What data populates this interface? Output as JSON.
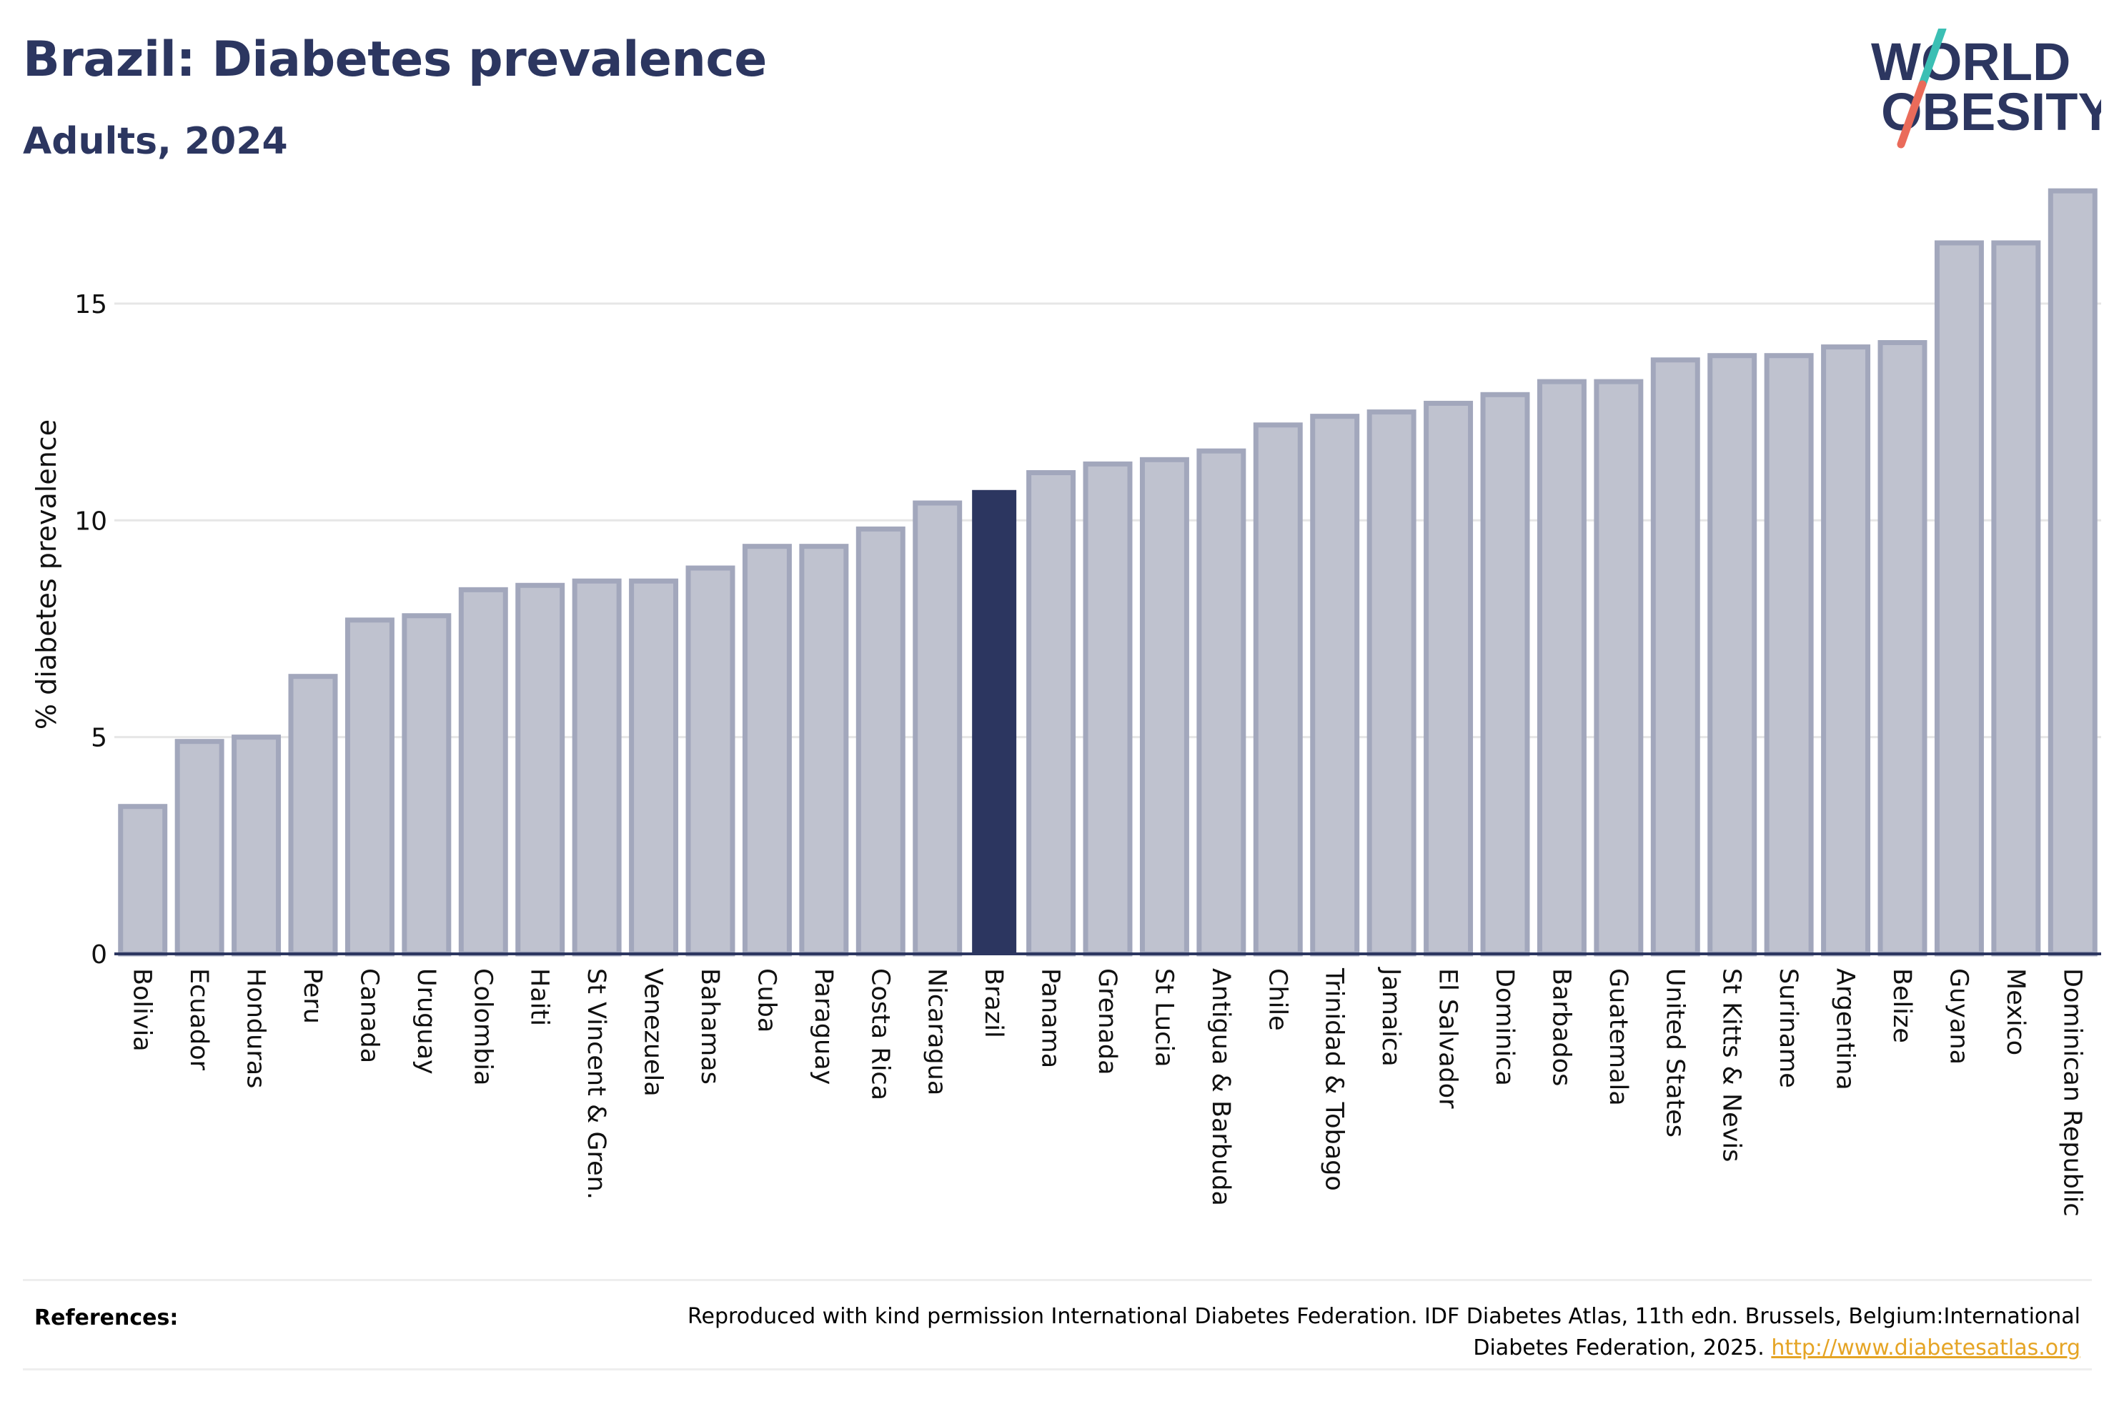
{
  "header": {
    "title": "Brazil: Diabetes prevalence",
    "subtitle": "Adults, 2024"
  },
  "logo": {
    "line1": "WORLD",
    "line2": "OBESITY",
    "colors": {
      "text": "#2c3660",
      "slash_top": "#3bbfb4",
      "slash_bottom": "#ea6b5a"
    }
  },
  "colors": {
    "bar_default_fill": "#bfc2cf",
    "bar_default_stroke": "#a2a7bc",
    "bar_highlight": "#2c3660",
    "gridline": "#e6e6e6",
    "axis": "#2c3660"
  },
  "chart_data": {
    "type": "bar",
    "ylabel": "% diabetes prevalence",
    "ylim": [
      0,
      17.8
    ],
    "yticks": [
      0,
      5,
      10,
      15
    ],
    "grid": true,
    "highlight": "Brazil",
    "categories": [
      "Bolivia",
      "Ecuador",
      "Honduras",
      "Peru",
      "Canada",
      "Uruguay",
      "Colombia",
      "Haiti",
      "St Vincent & Gren.",
      "Venezuela",
      "Bahamas",
      "Cuba",
      "Paraguay",
      "Costa Rica",
      "Nicaragua",
      "Brazil",
      "Panama",
      "Grenada",
      "St Lucia",
      "Antigua & Barbuda",
      "Chile",
      "Trinidad & Tobago",
      "Jamaica",
      "El Salvador",
      "Dominica",
      "Barbados",
      "Guatemala",
      "United States",
      "St Kitts & Nevis",
      "Suriname",
      "Argentina",
      "Belize",
      "Guyana",
      "Mexico",
      "Dominican Republic"
    ],
    "values": [
      3.4,
      4.9,
      5.0,
      6.4,
      7.7,
      7.8,
      8.4,
      8.5,
      8.6,
      8.6,
      8.9,
      9.4,
      9.4,
      9.8,
      10.4,
      10.7,
      11.1,
      11.3,
      11.4,
      11.6,
      12.2,
      12.4,
      12.5,
      12.7,
      12.9,
      13.2,
      13.2,
      13.7,
      13.8,
      13.8,
      14.0,
      14.1,
      16.4,
      16.4,
      17.6
    ]
  },
  "references": {
    "label": "References:",
    "text": "Reproduced with kind permission International Diabetes Federation. IDF Diabetes Atlas, 11th edn. Brussels, Belgium:International Diabetes Federation, 2025.",
    "link": "http://www.diabetesatlas.org"
  }
}
